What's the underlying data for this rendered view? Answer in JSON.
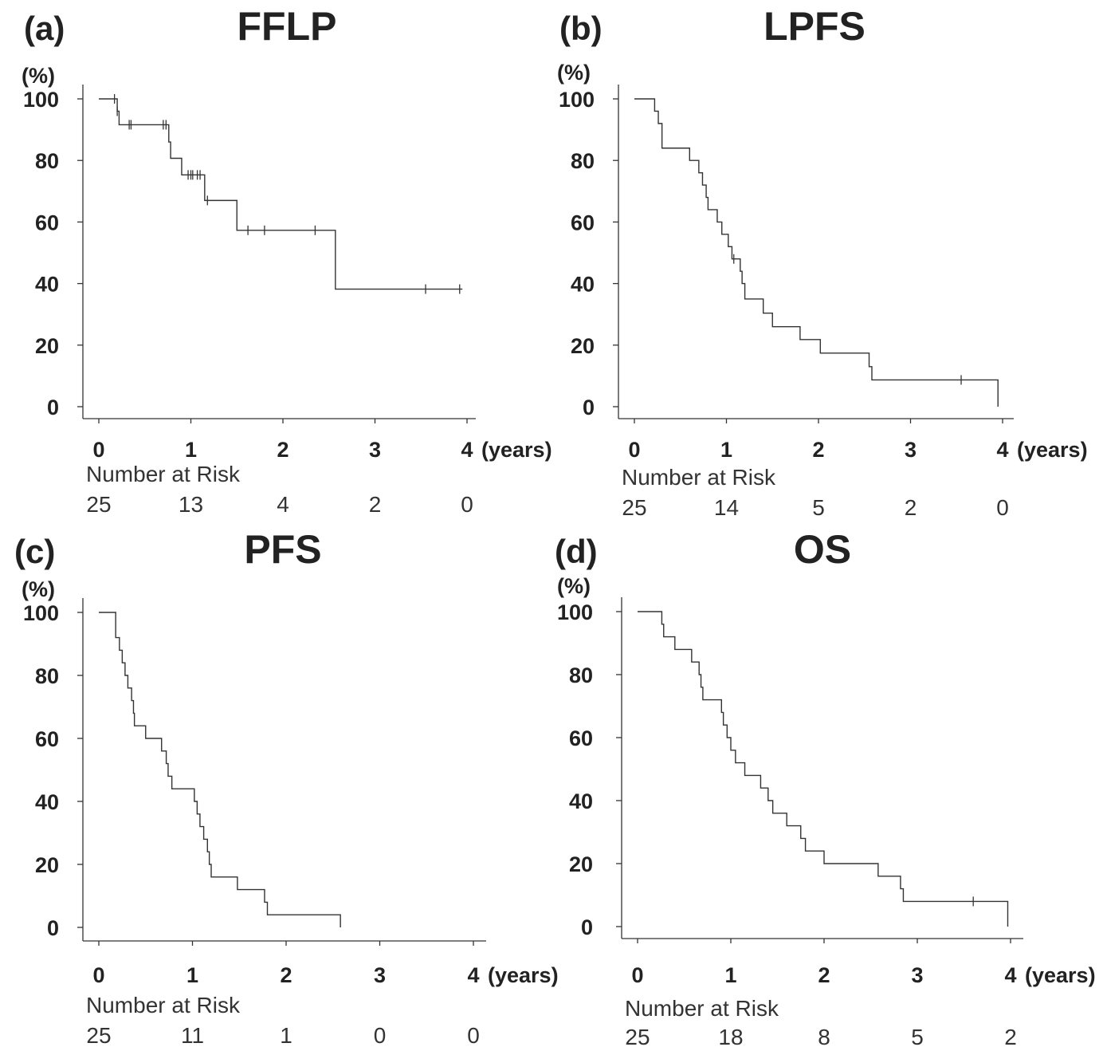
{
  "chart_data": [
    {
      "type": "line",
      "panel": "(a)",
      "title": "FFLP",
      "ylabel": "(%)",
      "xunit": "(years)",
      "xlim": [
        0,
        4
      ],
      "ylim": [
        0,
        100
      ],
      "xticks": [
        "0",
        "1",
        "2",
        "3",
        "4"
      ],
      "yticks": [
        "0",
        "20",
        "40",
        "60",
        "80",
        "100"
      ],
      "series": [
        {
          "steps": [
            [
              0,
              100
            ],
            [
              0.2,
              96
            ],
            [
              0.22,
              91.6
            ],
            [
              0.76,
              86
            ],
            [
              0.78,
              80.7
            ],
            [
              0.9,
              75.3
            ],
            [
              1.15,
              67
            ],
            [
              1.5,
              57.3
            ],
            [
              2.57,
              38.2
            ],
            [
              3.95,
              38.2
            ]
          ],
          "censored": [
            [
              0.17,
              100
            ],
            [
              0.2,
              96
            ],
            [
              0.33,
              91.6
            ],
            [
              0.35,
              91.6
            ],
            [
              0.7,
              91.6
            ],
            [
              0.73,
              91.6
            ],
            [
              0.97,
              75.3
            ],
            [
              1.0,
              75.3
            ],
            [
              1.02,
              75.3
            ],
            [
              1.07,
              75.3
            ],
            [
              1.1,
              75.3
            ],
            [
              1.18,
              67
            ],
            [
              1.62,
              57.3
            ],
            [
              1.8,
              57.3
            ],
            [
              2.35,
              57.3
            ],
            [
              3.55,
              38.2
            ],
            [
              3.92,
              38.2
            ]
          ]
        }
      ],
      "risk_title": "Number at Risk",
      "risk_values": [
        "25",
        "13",
        "4",
        "2",
        "0"
      ]
    },
    {
      "type": "line",
      "panel": "(b)",
      "title": "LPFS",
      "ylabel": "(%)",
      "xunit": "(years)",
      "xlim": [
        0,
        4
      ],
      "ylim": [
        0,
        100
      ],
      "xticks": [
        "0",
        "1",
        "2",
        "3",
        "4"
      ],
      "yticks": [
        "0",
        "20",
        "40",
        "60",
        "80",
        "100"
      ],
      "series": [
        {
          "steps": [
            [
              0,
              100
            ],
            [
              0.22,
              96
            ],
            [
              0.26,
              92
            ],
            [
              0.3,
              84
            ],
            [
              0.6,
              80
            ],
            [
              0.7,
              76
            ],
            [
              0.74,
              72
            ],
            [
              0.78,
              68
            ],
            [
              0.8,
              64
            ],
            [
              0.9,
              60
            ],
            [
              0.95,
              56
            ],
            [
              1.02,
              52
            ],
            [
              1.06,
              48
            ],
            [
              1.15,
              44
            ],
            [
              1.17,
              40
            ],
            [
              1.2,
              35
            ],
            [
              1.4,
              30.4
            ],
            [
              1.5,
              26
            ],
            [
              1.8,
              21.8
            ],
            [
              2.02,
              17.4
            ],
            [
              2.55,
              13
            ],
            [
              2.58,
              8.7
            ],
            [
              3.95,
              0
            ]
          ],
          "censored": [
            [
              1.08,
              48
            ],
            [
              3.55,
              8.7
            ]
          ]
        }
      ],
      "risk_title": "Number at Risk",
      "risk_values": [
        "25",
        "14",
        "5",
        "2",
        "0"
      ]
    },
    {
      "type": "line",
      "panel": "(c)",
      "title": "PFS",
      "ylabel": "(%)",
      "xunit": "(years)",
      "xlim": [
        0,
        4
      ],
      "ylim": [
        0,
        100
      ],
      "xticks": [
        "0",
        "1",
        "2",
        "3",
        "4"
      ],
      "yticks": [
        "0",
        "20",
        "40",
        "60",
        "80",
        "100"
      ],
      "series": [
        {
          "steps": [
            [
              0,
              100
            ],
            [
              0.18,
              92
            ],
            [
              0.22,
              88
            ],
            [
              0.25,
              84
            ],
            [
              0.28,
              80
            ],
            [
              0.31,
              76
            ],
            [
              0.35,
              72
            ],
            [
              0.37,
              68
            ],
            [
              0.38,
              64
            ],
            [
              0.5,
              60
            ],
            [
              0.67,
              56
            ],
            [
              0.72,
              52
            ],
            [
              0.74,
              48
            ],
            [
              0.78,
              44
            ],
            [
              1.02,
              40
            ],
            [
              1.05,
              36
            ],
            [
              1.08,
              32
            ],
            [
              1.12,
              28
            ],
            [
              1.16,
              24
            ],
            [
              1.18,
              20
            ],
            [
              1.2,
              16
            ],
            [
              1.48,
              12
            ],
            [
              1.77,
              8
            ],
            [
              1.8,
              4
            ],
            [
              2.58,
              0
            ]
          ],
          "censored": []
        }
      ],
      "risk_title": "Number at Risk",
      "risk_values": [
        "25",
        "11",
        "1",
        "0",
        "0"
      ]
    },
    {
      "type": "line",
      "panel": "(d)",
      "title": "OS",
      "ylabel": "(%)",
      "xunit": "(years)",
      "xlim": [
        0,
        4
      ],
      "ylim": [
        0,
        100
      ],
      "xticks": [
        "0",
        "1",
        "2",
        "3",
        "4"
      ],
      "yticks": [
        "0",
        "20",
        "40",
        "60",
        "80",
        "100"
      ],
      "series": [
        {
          "steps": [
            [
              0,
              100
            ],
            [
              0.26,
              96
            ],
            [
              0.28,
              92
            ],
            [
              0.4,
              88
            ],
            [
              0.58,
              84
            ],
            [
              0.66,
              80
            ],
            [
              0.68,
              76
            ],
            [
              0.7,
              72
            ],
            [
              0.9,
              68
            ],
            [
              0.92,
              64
            ],
            [
              0.96,
              60
            ],
            [
              1.0,
              56
            ],
            [
              1.05,
              52
            ],
            [
              1.15,
              48
            ],
            [
              1.32,
              44
            ],
            [
              1.4,
              40
            ],
            [
              1.45,
              36
            ],
            [
              1.6,
              32
            ],
            [
              1.75,
              28
            ],
            [
              1.8,
              24
            ],
            [
              2.0,
              20
            ],
            [
              2.58,
              16
            ],
            [
              2.82,
              12
            ],
            [
              2.85,
              8
            ],
            [
              3.97,
              0
            ]
          ],
          "censored": [
            [
              3.6,
              8
            ]
          ]
        }
      ],
      "risk_title": "Number at Risk",
      "risk_values": [
        "25",
        "18",
        "8",
        "5",
        "2"
      ]
    }
  ]
}
